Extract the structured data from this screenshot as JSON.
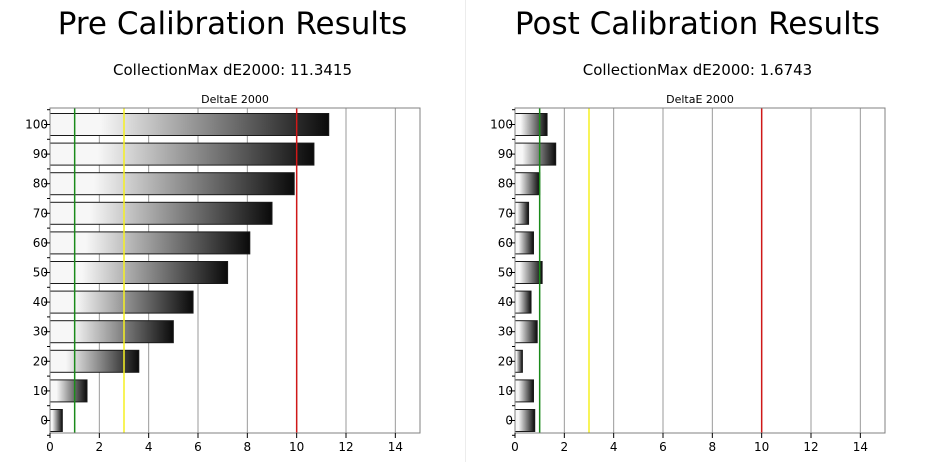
{
  "colors": {
    "gridline": "#9a9a9a",
    "frame": "#808080",
    "bar_light": "#f7f7f7",
    "bar_dark": "#0a0a0a",
    "threshold_green": "#1a8a1a",
    "threshold_yellow": "#f5f022",
    "threshold_red": "#d01818"
  },
  "chart_data": [
    {
      "type": "bar",
      "orientation": "horizontal",
      "title": "Pre Calibration Results",
      "subtitle": "CollectionMax dE2000: 11.3415",
      "plot_title": "DeltaE 2000",
      "categories": [
        "100",
        "90",
        "80",
        "70",
        "60",
        "50",
        "40",
        "30",
        "20",
        "10",
        "0"
      ],
      "values": [
        11.3,
        10.7,
        9.9,
        9.0,
        8.1,
        7.2,
        5.8,
        5.0,
        3.6,
        1.5,
        0.5
      ],
      "xlim": [
        0,
        15
      ],
      "xticks": [
        "0",
        "2",
        "4",
        "6",
        "8",
        "10",
        "12",
        "14"
      ],
      "grid": true,
      "threshold_lines": [
        1,
        3,
        10
      ]
    },
    {
      "type": "bar",
      "orientation": "horizontal",
      "title": "Post Calibration Results",
      "subtitle": "CollectionMax dE2000: 1.6743",
      "plot_title": "DeltaE 2000",
      "categories": [
        "100",
        "90",
        "80",
        "70",
        "60",
        "50",
        "40",
        "30",
        "20",
        "10",
        "0"
      ],
      "values": [
        1.3,
        1.65,
        1.0,
        0.55,
        0.75,
        1.1,
        0.65,
        0.9,
        0.3,
        0.75,
        0.8
      ],
      "xlim": [
        0,
        15
      ],
      "xticks": [
        "0",
        "2",
        "4",
        "6",
        "8",
        "10",
        "12",
        "14"
      ],
      "grid": true,
      "threshold_lines": [
        1,
        3,
        10
      ]
    }
  ]
}
